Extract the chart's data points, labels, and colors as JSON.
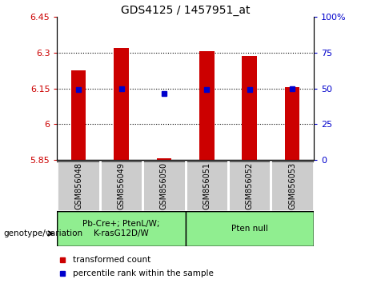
{
  "title": "GDS4125 / 1457951_at",
  "samples": [
    "GSM856048",
    "GSM856049",
    "GSM856050",
    "GSM856051",
    "GSM856052",
    "GSM856053"
  ],
  "bar_values": [
    6.225,
    6.32,
    5.858,
    6.305,
    6.285,
    6.155
  ],
  "bar_bottom": 5.85,
  "percentile_values": [
    6.145,
    6.148,
    6.128,
    6.147,
    6.146,
    6.148
  ],
  "ylim_left": [
    5.85,
    6.45
  ],
  "ylim_right": [
    0,
    100
  ],
  "yticks_left": [
    5.85,
    6.0,
    6.15,
    6.3,
    6.45
  ],
  "yticks_right": [
    0,
    25,
    50,
    75,
    100
  ],
  "ytick_labels_left": [
    "5.85",
    "6",
    "6.15",
    "6.3",
    "6.45"
  ],
  "ytick_labels_right": [
    "0",
    "25",
    "50",
    "75",
    "100%"
  ],
  "hlines": [
    6.0,
    6.15,
    6.3
  ],
  "bar_color": "#cc0000",
  "percentile_color": "#0000cc",
  "groups": [
    {
      "label": "Pb-Cre+; PtenL/W;\nK-rasG12D/W",
      "indices": [
        0,
        1,
        2
      ],
      "color": "#90ee90"
    },
    {
      "label": "Pten null",
      "indices": [
        3,
        4,
        5
      ],
      "color": "#90ee90"
    }
  ],
  "genotype_label": "genotype/variation",
  "legend_items": [
    {
      "color": "#cc0000",
      "label": "transformed count"
    },
    {
      "color": "#0000cc",
      "label": "percentile rank within the sample"
    }
  ],
  "tick_label_color_left": "#cc0000",
  "tick_label_color_right": "#0000cc",
  "xticklabel_bg": "#cccccc",
  "group_border_color": "#000000"
}
